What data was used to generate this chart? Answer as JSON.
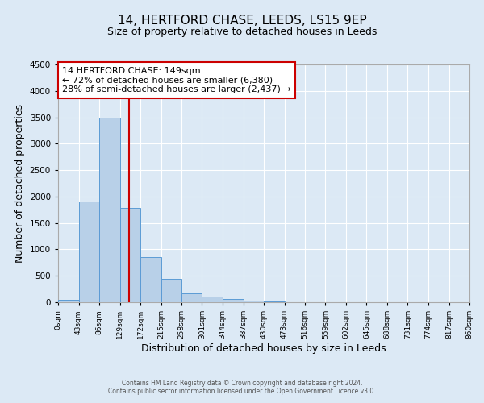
{
  "title": "14, HERTFORD CHASE, LEEDS, LS15 9EP",
  "subtitle": "Size of property relative to detached houses in Leeds",
  "xlabel": "Distribution of detached houses by size in Leeds",
  "ylabel": "Number of detached properties",
  "bar_edges": [
    0,
    43,
    86,
    129,
    172,
    215,
    258,
    301,
    344,
    387,
    430,
    473,
    516,
    559,
    602,
    645,
    688,
    731,
    774,
    817,
    860
  ],
  "bar_heights": [
    50,
    1900,
    3500,
    1780,
    850,
    450,
    175,
    100,
    55,
    30,
    15,
    5,
    2,
    1,
    0,
    0,
    0,
    0,
    0,
    0
  ],
  "bar_color": "#b8d0e8",
  "bar_edge_color": "#5b9bd5",
  "property_line_x": 149,
  "property_line_color": "#cc0000",
  "ylim": [
    0,
    4500
  ],
  "xlim": [
    0,
    860
  ],
  "annotation_text": "14 HERTFORD CHASE: 149sqm\n← 72% of detached houses are smaller (6,380)\n28% of semi-detached houses are larger (2,437) →",
  "annotation_box_color": "#ffffff",
  "annotation_box_edge_color": "#cc0000",
  "footer_line1": "Contains HM Land Registry data © Crown copyright and database right 2024.",
  "footer_line2": "Contains public sector information licensed under the Open Government Licence v3.0.",
  "background_color": "#dce9f5",
  "axes_background_color": "#dce9f5",
  "tick_labels": [
    "0sqm",
    "43sqm",
    "86sqm",
    "129sqm",
    "172sqm",
    "215sqm",
    "258sqm",
    "301sqm",
    "344sqm",
    "387sqm",
    "430sqm",
    "473sqm",
    "516sqm",
    "559sqm",
    "602sqm",
    "645sqm",
    "688sqm",
    "731sqm",
    "774sqm",
    "817sqm",
    "860sqm"
  ],
  "title_fontsize": 11,
  "subtitle_fontsize": 9,
  "ylabel_fontsize": 9,
  "xlabel_fontsize": 9,
  "annotation_fontsize": 8,
  "footer_fontsize": 5.5,
  "yticks": [
    0,
    500,
    1000,
    1500,
    2000,
    2500,
    3000,
    3500,
    4000,
    4500
  ]
}
